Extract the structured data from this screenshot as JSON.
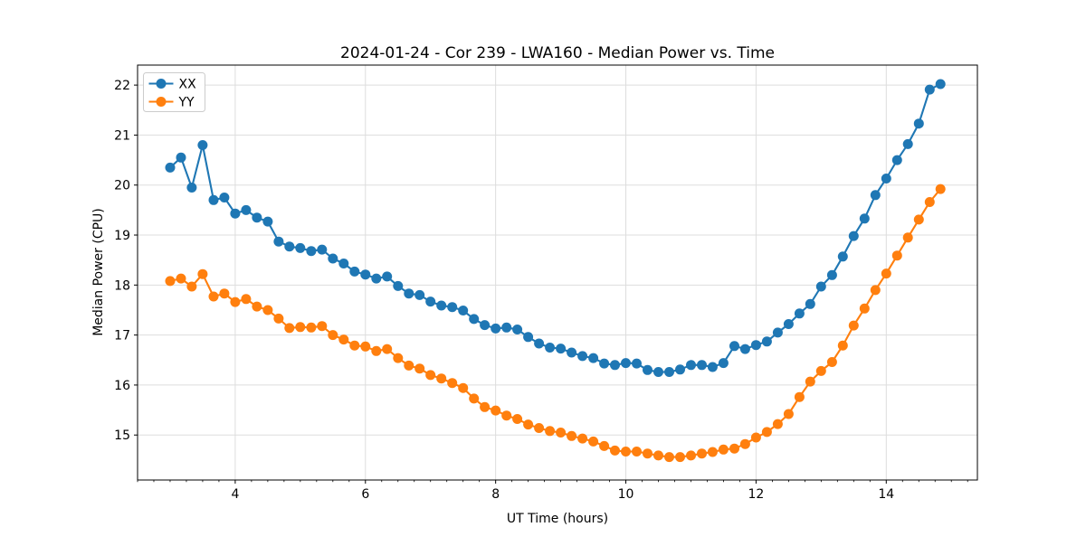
{
  "chart_data": {
    "type": "line",
    "title": "2024-01-24 - Cor 239 - LWA160 - Median Power vs. Time",
    "xlabel": "UT Time (hours)",
    "ylabel": "Median Power (CPU)",
    "xlim": [
      2.5,
      15.4
    ],
    "ylim": [
      14.1,
      22.4
    ],
    "xticks": [
      4,
      6,
      8,
      10,
      12,
      14
    ],
    "xminor_step": 0.25,
    "yticks": [
      15,
      16,
      17,
      18,
      19,
      20,
      21,
      22
    ],
    "grid": true,
    "grid_color": "#dddddd",
    "legend_position": "upper-left",
    "marker": "circle",
    "x": [
      3.0,
      3.167,
      3.333,
      3.5,
      3.667,
      3.833,
      4.0,
      4.167,
      4.333,
      4.5,
      4.667,
      4.833,
      5.0,
      5.167,
      5.333,
      5.5,
      5.667,
      5.833,
      6.0,
      6.167,
      6.333,
      6.5,
      6.667,
      6.833,
      7.0,
      7.167,
      7.333,
      7.5,
      7.667,
      7.833,
      8.0,
      8.167,
      8.333,
      8.5,
      8.667,
      8.833,
      9.0,
      9.167,
      9.333,
      9.5,
      9.667,
      9.833,
      10.0,
      10.167,
      10.333,
      10.5,
      10.667,
      10.833,
      11.0,
      11.167,
      11.333,
      11.5,
      11.667,
      11.833,
      12.0,
      12.167,
      12.333,
      12.5,
      12.667,
      12.833,
      13.0,
      13.167,
      13.333,
      13.5,
      13.667,
      13.833,
      14.0,
      14.167,
      14.333,
      14.5,
      14.667,
      14.833
    ],
    "series": [
      {
        "name": "XX",
        "color": "#1f77b4",
        "values": [
          20.35,
          20.55,
          19.95,
          20.8,
          19.7,
          19.75,
          19.43,
          19.5,
          19.35,
          19.27,
          18.87,
          18.77,
          18.74,
          18.68,
          18.71,
          18.53,
          18.43,
          18.27,
          18.21,
          18.13,
          18.17,
          17.98,
          17.83,
          17.8,
          17.67,
          17.59,
          17.56,
          17.49,
          17.32,
          17.2,
          17.13,
          17.15,
          17.11,
          16.96,
          16.83,
          16.75,
          16.73,
          16.65,
          16.58,
          16.54,
          16.43,
          16.4,
          16.44,
          16.43,
          16.3,
          16.26,
          16.26,
          16.31,
          16.4,
          16.4,
          16.36,
          16.44,
          16.78,
          16.72,
          16.8,
          16.87,
          17.05,
          17.22,
          17.43,
          17.62,
          17.97,
          18.2,
          18.57,
          18.98,
          19.33,
          19.8,
          20.13,
          20.5,
          20.82,
          21.23,
          21.91,
          22.02
        ]
      },
      {
        "name": "YY",
        "color": "#ff7f0e",
        "values": [
          18.08,
          18.13,
          17.97,
          18.22,
          17.77,
          17.83,
          17.66,
          17.72,
          17.57,
          17.5,
          17.33,
          17.14,
          17.16,
          17.15,
          17.18,
          17.0,
          16.91,
          16.79,
          16.77,
          16.68,
          16.72,
          16.54,
          16.39,
          16.33,
          16.2,
          16.13,
          16.04,
          15.94,
          15.73,
          15.56,
          15.49,
          15.39,
          15.32,
          15.21,
          15.14,
          15.08,
          15.05,
          14.98,
          14.93,
          14.87,
          14.78,
          14.69,
          14.67,
          14.67,
          14.63,
          14.59,
          14.56,
          14.56,
          14.59,
          14.63,
          14.66,
          14.71,
          14.73,
          14.82,
          14.95,
          15.06,
          15.22,
          15.42,
          15.76,
          16.07,
          16.28,
          16.46,
          16.79,
          17.19,
          17.53,
          17.9,
          18.23,
          18.59,
          18.95,
          19.31,
          19.66,
          19.92
        ]
      }
    ]
  }
}
